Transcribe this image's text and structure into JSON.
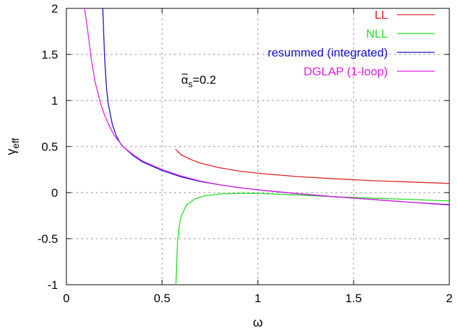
{
  "chart_data": {
    "type": "line",
    "xlabel": "ω",
    "ylabel": "γ",
    "ylabel_sub": "eff",
    "xlim": [
      0,
      2
    ],
    "ylim": [
      -1,
      2
    ],
    "grid": true,
    "legend_position": "top-right",
    "x_ticks": [
      0,
      0.5,
      1,
      1.5,
      2
    ],
    "x_tick_labels": [
      "0",
      "0.5",
      "1",
      "1.5",
      "2"
    ],
    "y_ticks": [
      -1,
      -0.5,
      0,
      0.5,
      1,
      1.5,
      2
    ],
    "y_tick_labels": [
      "-1",
      "-0.5",
      "0",
      "0.5",
      "1",
      "1.5",
      "2"
    ],
    "annotation": {
      "symbol": "α",
      "sub": "s",
      "text": "=0.2",
      "x": 0.6,
      "y": 1.18
    },
    "series": [
      {
        "name": "LL",
        "color": "#dd2222",
        "points": [
          [
            0.57,
            0.47
          ],
          [
            0.6,
            0.41
          ],
          [
            0.65,
            0.36
          ],
          [
            0.7,
            0.32
          ],
          [
            0.8,
            0.27
          ],
          [
            0.9,
            0.235
          ],
          [
            1.0,
            0.21
          ],
          [
            1.2,
            0.175
          ],
          [
            1.4,
            0.15
          ],
          [
            1.6,
            0.13
          ],
          [
            1.8,
            0.115
          ],
          [
            2.0,
            0.1
          ]
        ]
      },
      {
        "name": "NLL",
        "color": "#22dd22",
        "points": [
          [
            0.572,
            -1.0
          ],
          [
            0.58,
            -0.55
          ],
          [
            0.59,
            -0.35
          ],
          [
            0.6,
            -0.25
          ],
          [
            0.63,
            -0.13
          ],
          [
            0.67,
            -0.07
          ],
          [
            0.72,
            -0.035
          ],
          [
            0.8,
            -0.015
          ],
          [
            0.9,
            -0.008
          ],
          [
            1.0,
            -0.008
          ],
          [
            1.2,
            -0.025
          ],
          [
            1.4,
            -0.045
          ],
          [
            1.6,
            -0.06
          ],
          [
            1.8,
            -0.075
          ],
          [
            2.0,
            -0.09
          ]
        ]
      },
      {
        "name": "resummed (integrated)",
        "color": "#1111cc",
        "points": [
          [
            0.19,
            2.0
          ],
          [
            0.2,
            1.45
          ],
          [
            0.21,
            1.12
          ],
          [
            0.22,
            0.95
          ],
          [
            0.24,
            0.74
          ],
          [
            0.26,
            0.62
          ],
          [
            0.28,
            0.54
          ],
          [
            0.3,
            0.49
          ],
          [
            0.35,
            0.4
          ],
          [
            0.4,
            0.33
          ],
          [
            0.5,
            0.24
          ],
          [
            0.6,
            0.17
          ],
          [
            0.7,
            0.12
          ],
          [
            0.8,
            0.085
          ],
          [
            0.9,
            0.055
          ],
          [
            1.0,
            0.03
          ],
          [
            1.2,
            -0.01
          ],
          [
            1.4,
            -0.045
          ],
          [
            1.6,
            -0.075
          ],
          [
            1.8,
            -0.105
          ],
          [
            2.0,
            -0.13
          ]
        ]
      },
      {
        "name": "DGLAP (1-loop)",
        "color": "#dd22dd",
        "points": [
          [
            0.095,
            2.0
          ],
          [
            0.11,
            1.78
          ],
          [
            0.13,
            1.45
          ],
          [
            0.15,
            1.2
          ],
          [
            0.18,
            0.96
          ],
          [
            0.2,
            0.84
          ],
          [
            0.22,
            0.74
          ],
          [
            0.25,
            0.62
          ],
          [
            0.3,
            0.49
          ],
          [
            0.35,
            0.41
          ],
          [
            0.4,
            0.34
          ],
          [
            0.5,
            0.25
          ],
          [
            0.6,
            0.18
          ],
          [
            0.7,
            0.125
          ],
          [
            0.8,
            0.085
          ],
          [
            0.9,
            0.055
          ],
          [
            1.0,
            0.03
          ],
          [
            1.2,
            -0.01
          ],
          [
            1.4,
            -0.045
          ],
          [
            1.6,
            -0.075
          ],
          [
            1.8,
            -0.105
          ],
          [
            2.0,
            -0.135
          ]
        ]
      }
    ]
  }
}
